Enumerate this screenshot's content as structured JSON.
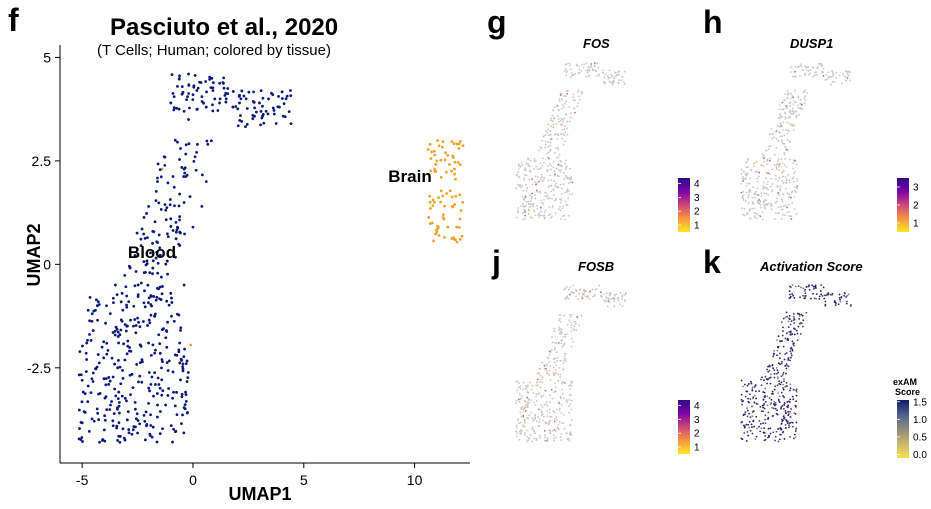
{
  "panels": {
    "f": {
      "letter": "f",
      "title": "Pasciuto et al., 2020",
      "subtitle": "(T Cells; Human; colored by tissue)",
      "xlabel": "UMAP1",
      "ylabel": "UMAP2",
      "xticks": [
        "-5",
        "0",
        "5",
        "10"
      ],
      "yticks": [
        "5",
        "2.5",
        "0",
        "-2.5"
      ],
      "annotations": [
        "Blood",
        "Brain"
      ]
    },
    "g": {
      "letter": "g",
      "title": "FOS",
      "legend_ticks": [
        "4",
        "3",
        "2",
        "1"
      ]
    },
    "h": {
      "letter": "h",
      "title": "DUSP1",
      "legend_ticks": [
        "3",
        "2",
        "1"
      ]
    },
    "j": {
      "letter": "j",
      "title": "FOSB",
      "legend_ticks": [
        "4",
        "3",
        "2",
        "1"
      ]
    },
    "k": {
      "letter": "k",
      "title": "Activation Score",
      "legend_title_1": "exAM",
      "legend_title_2": "Score",
      "legend_ticks": [
        "1.5",
        "1.0",
        "0.5",
        "0.0"
      ]
    }
  },
  "chart_data": [
    {
      "type": "scatter",
      "title": "Pasciuto et al., 2020",
      "subtitle": "(T Cells; Human; colored by tissue)",
      "xlabel": "UMAP1",
      "ylabel": "UMAP2",
      "xlim": [
        -6,
        12.5
      ],
      "ylim": [
        -4.8,
        5.3
      ],
      "xticks": [
        -5,
        0,
        5,
        10
      ],
      "yticks": [
        5,
        2.5,
        0,
        -2.5
      ],
      "grid": false,
      "series": [
        {
          "name": "Blood",
          "color": "#0d1a78",
          "points": [
            [
              -5.0,
              -2.8
            ],
            [
              -4.8,
              -2.3
            ],
            [
              -4.6,
              -3.1
            ],
            [
              -4.5,
              -1.6
            ],
            [
              -4.3,
              -3.6
            ],
            [
              -4.1,
              -2.0
            ],
            [
              -4.0,
              -4.0
            ],
            [
              -3.9,
              -1.0
            ],
            [
              -3.8,
              -2.9
            ],
            [
              -3.6,
              -3.9
            ],
            [
              -3.5,
              -0.5
            ],
            [
              -3.4,
              -2.5
            ],
            [
              -3.3,
              -1.7
            ],
            [
              -3.1,
              -4.2
            ],
            [
              -3.0,
              -3.3
            ],
            [
              -2.9,
              -0.9
            ],
            [
              -2.8,
              -2.1
            ],
            [
              -2.6,
              -3.5
            ],
            [
              -2.5,
              -1.3
            ],
            [
              -2.4,
              -2.7
            ],
            [
              -2.2,
              -0.2
            ],
            [
              -2.1,
              -3.9
            ],
            [
              -2.0,
              -1.9
            ],
            [
              -1.9,
              -2.9
            ],
            [
              -1.7,
              -1.2
            ],
            [
              -1.6,
              -3.4
            ],
            [
              -1.5,
              0.4
            ],
            [
              -1.4,
              -2.3
            ],
            [
              -1.2,
              -1.6
            ],
            [
              -1.1,
              -3.0
            ],
            [
              -1.0,
              -0.7
            ],
            [
              -0.9,
              -2.6
            ],
            [
              -0.7,
              0.9
            ],
            [
              -0.6,
              -1.9
            ],
            [
              -0.5,
              -3.2
            ],
            [
              -0.4,
              -0.5
            ],
            [
              -0.3,
              -2.4
            ],
            [
              -2.0,
              1.4
            ],
            [
              -1.6,
              2.0
            ],
            [
              -1.3,
              2.6
            ],
            [
              -1.0,
              1.1
            ],
            [
              -0.8,
              3.0
            ],
            [
              -0.6,
              1.7
            ],
            [
              -0.4,
              2.3
            ],
            [
              -0.2,
              3.5
            ],
            [
              0.0,
              0.9
            ],
            [
              0.2,
              2.9
            ],
            [
              0.4,
              1.4
            ],
            [
              0.6,
              2.0
            ],
            [
              -1.0,
              3.9
            ],
            [
              -0.7,
              4.3
            ],
            [
              -0.4,
              3.7
            ],
            [
              -0.2,
              4.6
            ],
            [
              0.0,
              4.1
            ],
            [
              0.3,
              4.4
            ],
            [
              0.6,
              3.8
            ],
            [
              0.9,
              4.2
            ],
            [
              1.2,
              3.9
            ],
            [
              1.5,
              4.0
            ],
            [
              1.8,
              3.8
            ],
            [
              2.1,
              3.9
            ],
            [
              2.4,
              4.0
            ],
            [
              2.7,
              3.6
            ],
            [
              3.0,
              3.9
            ],
            [
              3.3,
              3.7
            ],
            [
              3.6,
              4.1
            ],
            [
              3.9,
              3.8
            ],
            [
              4.2,
              4.0
            ],
            [
              4.4,
              4.2
            ]
          ]
        },
        {
          "name": "Brain",
          "color": "#f0a22a",
          "points": [
            [
              10.7,
              2.9
            ],
            [
              11.0,
              2.5
            ],
            [
              11.4,
              2.7
            ],
            [
              11.8,
              2.3
            ],
            [
              12.0,
              2.8
            ],
            [
              11.2,
              2.1
            ],
            [
              10.9,
              1.5
            ],
            [
              11.3,
              1.2
            ],
            [
              11.7,
              1.4
            ],
            [
              11.9,
              0.9
            ],
            [
              10.8,
              1.0
            ],
            [
              11.1,
              0.7
            ],
            [
              11.5,
              0.9
            ],
            [
              11.8,
              0.6
            ],
            [
              12.1,
              1.3
            ],
            [
              10.9,
              2.3
            ],
            [
              -1.4,
              2.3
            ],
            [
              -0.1,
              -1.95
            ]
          ]
        }
      ]
    },
    {
      "type": "scatter",
      "title": "FOS",
      "legend": "colorbar",
      "colorbar_range": [
        0.5,
        4.4
      ],
      "colorbar_ticks": [
        1,
        2,
        3,
        4
      ]
    },
    {
      "type": "scatter",
      "title": "DUSP1",
      "legend": "colorbar",
      "colorbar_range": [
        0.5,
        3.5
      ],
      "colorbar_ticks": [
        1,
        2,
        3
      ]
    },
    {
      "type": "scatter",
      "title": "FOSB",
      "legend": "colorbar",
      "colorbar_range": [
        0.5,
        4.4
      ],
      "colorbar_ticks": [
        1,
        2,
        3,
        4
      ]
    },
    {
      "type": "scatter",
      "title": "Activation Score",
      "legend": "colorbar",
      "colorbar_title": "exAM Score",
      "colorbar_range": [
        -0.1,
        1.55
      ],
      "colorbar_ticks": [
        0.0,
        0.5,
        1.0,
        1.5
      ]
    }
  ]
}
